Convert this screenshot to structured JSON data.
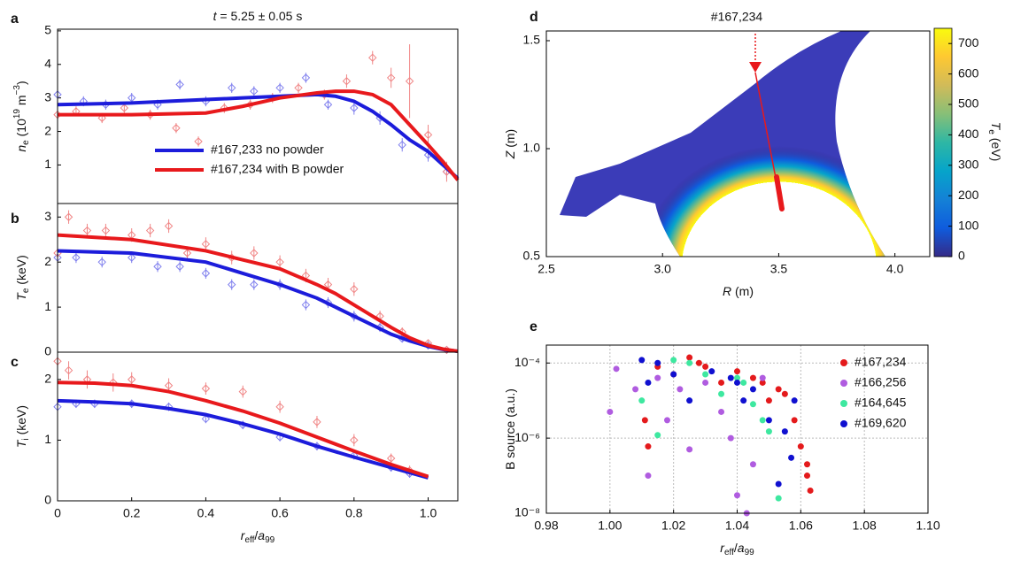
{
  "chart_data": [
    {
      "type": "line",
      "panel": "a",
      "title": [
        {
          "italic": "t"
        },
        {
          "text": " = 5.25 ± 0.05 s"
        }
      ],
      "ylabel": [
        {
          "italic": "n"
        },
        {
          "sub": "e"
        },
        {
          "text": " (10"
        },
        {
          "sup": "19"
        },
        {
          "text": " m"
        },
        {
          "sup": "−3"
        },
        {
          "text": ")"
        }
      ],
      "xlim": [
        0,
        1.08
      ],
      "ylim": [
        -0.15,
        5.05
      ],
      "yticks": [
        1,
        2,
        3,
        4,
        5
      ],
      "legend": "lower center",
      "series": [
        {
          "name": "#167,233 no powder",
          "color": "#1c1cdb",
          "x": [
            0,
            0.2,
            0.4,
            0.5,
            0.6,
            0.7,
            0.75,
            0.8,
            0.85,
            0.9,
            0.95,
            1.0,
            1.04,
            1.08
          ],
          "values": [
            2.8,
            2.85,
            2.95,
            3.0,
            3.05,
            3.1,
            3.05,
            2.9,
            2.6,
            2.2,
            1.75,
            1.4,
            1.0,
            0.6
          ]
        },
        {
          "name": "#167,234 with B powder",
          "color": "#e8191c",
          "x": [
            0,
            0.2,
            0.4,
            0.5,
            0.6,
            0.7,
            0.75,
            0.8,
            0.85,
            0.9,
            0.95,
            1.0,
            1.04,
            1.08
          ],
          "values": [
            2.5,
            2.5,
            2.55,
            2.75,
            3.0,
            3.15,
            3.2,
            3.2,
            3.1,
            2.8,
            2.2,
            1.6,
            1.1,
            0.55
          ]
        }
      ],
      "points": [
        {
          "color": "#8080ee",
          "x": [
            0,
            0.07,
            0.13,
            0.2,
            0.27,
            0.33,
            0.4,
            0.47,
            0.53,
            0.6,
            0.67,
            0.73,
            0.8,
            0.87,
            0.93,
            1.0,
            1.05
          ],
          "values": [
            3.1,
            2.9,
            2.8,
            3.0,
            2.8,
            3.4,
            2.9,
            3.3,
            3.2,
            3.3,
            3.6,
            2.8,
            2.7,
            2.4,
            1.6,
            1.3,
            0.8
          ],
          "errors": [
            0.15,
            0.15,
            0.15,
            0.15,
            0.15,
            0.15,
            0.15,
            0.15,
            0.15,
            0.15,
            0.15,
            0.15,
            0.2,
            0.2,
            0.2,
            0.2,
            0.2
          ]
        },
        {
          "color": "#f08585",
          "x": [
            0,
            0.05,
            0.12,
            0.18,
            0.25,
            0.32,
            0.38,
            0.45,
            0.52,
            0.58,
            0.65,
            0.72,
            0.78,
            0.85,
            0.9,
            0.95,
            1.0,
            1.05
          ],
          "values": [
            2.5,
            2.6,
            2.4,
            2.7,
            2.5,
            2.1,
            1.7,
            2.7,
            2.8,
            3.0,
            3.3,
            3.1,
            3.5,
            4.2,
            3.6,
            3.5,
            1.9,
            0.8
          ],
          "errors": [
            0.15,
            0.15,
            0.15,
            0.15,
            0.15,
            0.15,
            0.15,
            0.15,
            0.15,
            0.15,
            0.15,
            0.15,
            0.2,
            0.2,
            0.3,
            1.1,
            0.3,
            0.3
          ]
        }
      ]
    },
    {
      "type": "line",
      "panel": "b",
      "ylabel": [
        {
          "italic": "T"
        },
        {
          "sub": "e"
        },
        {
          "text": " (keV)"
        }
      ],
      "xlim": [
        0,
        1.08
      ],
      "ylim": [
        0,
        3.3
      ],
      "yticks": [
        0,
        1,
        2,
        3
      ],
      "series": [
        {
          "color": "#1c1cdb",
          "x": [
            0,
            0.2,
            0.4,
            0.5,
            0.6,
            0.7,
            0.75,
            0.8,
            0.85,
            0.9,
            0.95,
            1.0,
            1.04,
            1.08
          ],
          "values": [
            2.25,
            2.2,
            2.0,
            1.75,
            1.5,
            1.2,
            1.0,
            0.8,
            0.6,
            0.4,
            0.25,
            0.13,
            0.06,
            0.02
          ]
        },
        {
          "color": "#e8191c",
          "x": [
            0,
            0.2,
            0.4,
            0.5,
            0.6,
            0.7,
            0.75,
            0.8,
            0.85,
            0.9,
            0.95,
            1.0,
            1.04,
            1.08
          ],
          "values": [
            2.6,
            2.5,
            2.25,
            2.05,
            1.85,
            1.5,
            1.3,
            1.05,
            0.8,
            0.55,
            0.32,
            0.15,
            0.07,
            0.02
          ]
        }
      ],
      "points": [
        {
          "color": "#8080ee",
          "x": [
            0,
            0.05,
            0.12,
            0.2,
            0.27,
            0.33,
            0.4,
            0.47,
            0.53,
            0.6,
            0.67,
            0.73,
            0.8,
            0.87,
            0.93,
            1.0,
            1.05
          ],
          "values": [
            2.1,
            2.1,
            2.0,
            2.1,
            1.9,
            1.9,
            1.75,
            1.5,
            1.5,
            1.5,
            1.05,
            1.1,
            0.8,
            0.55,
            0.3,
            0.15,
            0.05
          ],
          "errors": [
            0.12,
            0.12,
            0.12,
            0.12,
            0.12,
            0.12,
            0.12,
            0.12,
            0.12,
            0.12,
            0.12,
            0.12,
            0.12,
            0.1,
            0.08,
            0.05,
            0.03
          ]
        },
        {
          "color": "#f08585",
          "x": [
            0,
            0.03,
            0.08,
            0.13,
            0.2,
            0.25,
            0.3,
            0.35,
            0.4,
            0.47,
            0.53,
            0.6,
            0.67,
            0.73,
            0.8,
            0.87,
            0.93,
            1.0,
            1.05
          ],
          "values": [
            2.2,
            3.0,
            2.7,
            2.7,
            2.6,
            2.7,
            2.8,
            2.2,
            2.4,
            2.1,
            2.2,
            2.0,
            1.7,
            1.5,
            1.4,
            0.8,
            0.45,
            0.2,
            0.05
          ],
          "errors": [
            0.15,
            0.15,
            0.15,
            0.15,
            0.15,
            0.15,
            0.15,
            0.15,
            0.15,
            0.15,
            0.15,
            0.15,
            0.15,
            0.15,
            0.15,
            0.12,
            0.1,
            0.06,
            0.03
          ]
        }
      ]
    },
    {
      "type": "line",
      "panel": "c",
      "ylabel": [
        {
          "italic": "T"
        },
        {
          "sub": "i"
        },
        {
          "text": " (keV)"
        }
      ],
      "xlabel": [
        {
          "italic": "r"
        },
        {
          "sub": "eff"
        },
        {
          "text": "/"
        },
        {
          "italic": "a"
        },
        {
          "sub": "99"
        }
      ],
      "xlim": [
        0,
        1.08
      ],
      "ylim": [
        0,
        2.45
      ],
      "yticks": [
        0,
        1,
        2
      ],
      "xticks": [
        0,
        0.2,
        0.4,
        0.6,
        0.8,
        {
          "value": 1,
          "label": "1.0"
        }
      ],
      "series": [
        {
          "color": "#1c1cdb",
          "x": [
            0,
            0.1,
            0.2,
            0.3,
            0.4,
            0.5,
            0.6,
            0.7,
            0.8,
            0.9,
            1.0
          ],
          "values": [
            1.65,
            1.63,
            1.6,
            1.52,
            1.42,
            1.27,
            1.1,
            0.9,
            0.72,
            0.55,
            0.38
          ]
        },
        {
          "color": "#e8191c",
          "x": [
            0,
            0.1,
            0.2,
            0.3,
            0.4,
            0.5,
            0.6,
            0.7,
            0.8,
            0.9,
            1.0
          ],
          "values": [
            1.95,
            1.94,
            1.9,
            1.8,
            1.65,
            1.48,
            1.28,
            1.05,
            0.82,
            0.6,
            0.4
          ]
        }
      ],
      "points": [
        {
          "color": "#8080ee",
          "x": [
            0,
            0.05,
            0.1,
            0.2,
            0.3,
            0.4,
            0.5,
            0.6,
            0.7,
            0.8,
            0.9,
            0.95
          ],
          "values": [
            1.55,
            1.6,
            1.6,
            1.6,
            1.55,
            1.35,
            1.25,
            1.05,
            0.9,
            0.75,
            0.55,
            0.45
          ],
          "errors": [
            0.07,
            0.07,
            0.07,
            0.07,
            0.07,
            0.07,
            0.07,
            0.07,
            0.07,
            0.07,
            0.07,
            0.07
          ]
        },
        {
          "color": "#f08585",
          "x": [
            0,
            0.03,
            0.08,
            0.15,
            0.2,
            0.3,
            0.4,
            0.5,
            0.6,
            0.7,
            0.8,
            0.9,
            0.95
          ],
          "values": [
            2.3,
            2.15,
            2.0,
            1.95,
            2.0,
            1.9,
            1.85,
            1.8,
            1.55,
            1.3,
            1.0,
            0.7,
            0.5
          ],
          "errors": [
            0.15,
            0.15,
            0.15,
            0.15,
            0.12,
            0.12,
            0.1,
            0.1,
            0.1,
            0.1,
            0.1,
            0.08,
            0.08
          ]
        }
      ]
    },
    {
      "type": "contour",
      "panel": "d",
      "annotation": "#167,234",
      "xlabel": [
        {
          "italic": "R"
        },
        {
          "text": " (m)"
        }
      ],
      "ylabel": [
        {
          "italic": "Z"
        },
        {
          "text": " (m)"
        }
      ],
      "xlim": [
        2.5,
        4.15
      ],
      "ylim": [
        0.5,
        1.545
      ],
      "xticks": [
        2.5,
        {
          "value": 3,
          "label": "3.0"
        },
        3.5,
        {
          "value": 4,
          "label": "4.0"
        }
      ],
      "yticks": [
        0.5,
        {
          "value": 1,
          "label": "1.0"
        },
        1.5
      ],
      "colormap": [
        "#352a87",
        "#0f5cdd",
        "#1481d6",
        "#06a4ca",
        "#2eb7a4",
        "#87bf77",
        "#d1bb59",
        "#fec832",
        "#f9fb0e"
      ],
      "colorbar": {
        "lim": [
          0,
          750
        ],
        "ticks": [
          0,
          100,
          200,
          300,
          400,
          500,
          600,
          700
        ],
        "label": [
          {
            "italic": "T"
          },
          {
            "sub": "e"
          },
          {
            "text": " (eV)"
          }
        ]
      }
    },
    {
      "type": "scatter",
      "panel": "e",
      "xlabel": [
        {
          "italic": "r"
        },
        {
          "sub": "eff"
        },
        {
          "text": "/"
        },
        {
          "italic": "a"
        },
        {
          "sub": "99"
        }
      ],
      "ylabel": [
        {
          "text": "B source (a.u.)"
        }
      ],
      "xlim": [
        0.98,
        1.1
      ],
      "ylim": [
        1e-08,
        0.0003
      ],
      "yscale": "log",
      "grid": true,
      "legend": "upper right",
      "xticks": [
        0.98,
        {
          "value": 1,
          "label": "1.00"
        },
        1.02,
        1.04,
        1.06,
        1.08,
        {
          "value": 1.1,
          "label": "1.10"
        }
      ],
      "yticks": [
        {
          "value": 1e-08,
          "label": "10⁻⁸"
        },
        {
          "value": 1e-06,
          "label": "10⁻⁶"
        },
        {
          "value": 0.0001,
          "label": "10⁻⁴"
        }
      ],
      "series": [
        {
          "name": "#167,234",
          "color": "#e41a1c",
          "x": [
            1.011,
            1.012,
            1.015,
            1.02,
            1.025,
            1.028,
            1.03,
            1.035,
            1.04,
            1.045,
            1.048,
            1.05,
            1.053,
            1.055,
            1.058,
            1.06,
            1.062,
            1.063,
            1.062
          ],
          "values": [
            3e-06,
            6e-07,
            8e-05,
            5e-05,
            0.00014,
            0.0001,
            8e-05,
            3e-05,
            6e-05,
            4e-05,
            3e-05,
            1e-05,
            2e-05,
            1.5e-05,
            3e-06,
            6e-07,
            1e-07,
            4e-08,
            2e-07
          ]
        },
        {
          "name": "#166,256",
          "color": "#b05ce0",
          "x": [
            1.0,
            1.002,
            1.008,
            1.012,
            1.015,
            1.018,
            1.022,
            1.025,
            1.03,
            1.035,
            1.038,
            1.04,
            1.043,
            1.045,
            1.048
          ],
          "values": [
            5e-06,
            7e-05,
            2e-05,
            1e-07,
            4e-05,
            3e-06,
            2e-05,
            5e-07,
            3e-05,
            5e-06,
            1e-06,
            3e-08,
            1e-08,
            2e-07,
            4e-05
          ]
        },
        {
          "name": "#164,645",
          "color": "#3ee8a0",
          "x": [
            1.01,
            1.015,
            1.02,
            1.025,
            1.03,
            1.035,
            1.04,
            1.042,
            1.045,
            1.048,
            1.05,
            1.053
          ],
          "values": [
            1e-05,
            1.2e-06,
            0.00012,
            0.0001,
            5e-05,
            1.5e-05,
            4e-05,
            3e-05,
            8e-06,
            3e-06,
            1.5e-06,
            2.5e-08
          ]
        },
        {
          "name": "#169,620",
          "color": "#1010d0",
          "x": [
            1.01,
            1.012,
            1.015,
            1.02,
            1.025,
            1.032,
            1.038,
            1.04,
            1.042,
            1.045,
            1.05,
            1.053,
            1.055,
            1.057,
            1.058
          ],
          "values": [
            0.00012,
            3e-05,
            0.0001,
            5e-05,
            1e-05,
            6e-05,
            4e-05,
            3e-05,
            1e-05,
            2e-05,
            3e-06,
            6e-08,
            1.5e-06,
            3e-07,
            1e-05
          ]
        }
      ]
    }
  ]
}
